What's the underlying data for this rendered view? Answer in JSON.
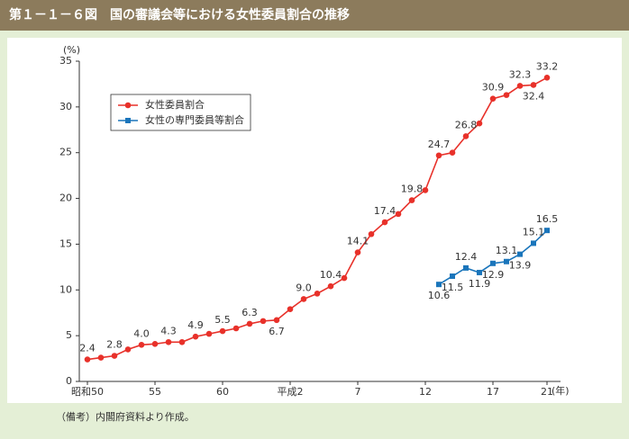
{
  "chart_data": {
    "type": "line",
    "title": "第１－１－６図　国の審議会等における女性委員割合の推移",
    "y_unit": "(%)",
    "x_unit": "(年)",
    "note": "（備考）内閣府資料より作成。",
    "categories": [
      "昭和50",
      null,
      null,
      null,
      null,
      "55",
      null,
      null,
      null,
      null,
      "60",
      null,
      null,
      null,
      null,
      "平成2",
      null,
      null,
      null,
      null,
      "7",
      null,
      null,
      null,
      null,
      "12",
      null,
      null,
      null,
      null,
      "17",
      null,
      null,
      null,
      "21"
    ],
    "series": [
      {
        "name": "女性委員割合",
        "color": "#e8312a",
        "marker": "circle",
        "values": [
          2.4,
          2.6,
          2.8,
          3.5,
          4.0,
          4.1,
          4.3,
          4.3,
          4.9,
          5.2,
          5.5,
          5.8,
          6.3,
          6.6,
          6.7,
          7.9,
          9.0,
          9.6,
          10.4,
          11.3,
          14.1,
          16.1,
          17.4,
          18.3,
          19.8,
          20.9,
          24.7,
          25.0,
          26.8,
          28.2,
          30.9,
          31.3,
          32.3,
          32.4,
          33.2
        ],
        "value_labels": [
          "2.4",
          null,
          "2.8",
          null,
          "4.0",
          null,
          "4.3",
          null,
          "4.9",
          null,
          "5.5",
          null,
          "6.3",
          null,
          "6.7",
          null,
          "9.0",
          null,
          "10.4",
          null,
          "14.1",
          null,
          "17.4",
          null,
          "19.8",
          null,
          "24.7",
          null,
          "26.8",
          null,
          "30.9",
          null,
          "32.3",
          "32.4",
          "33.2"
        ]
      },
      {
        "name": "女性の専門委員等割合",
        "color": "#1a75bb",
        "marker": "square",
        "values": [
          null,
          null,
          null,
          null,
          null,
          null,
          null,
          null,
          null,
          null,
          null,
          null,
          null,
          null,
          null,
          null,
          null,
          null,
          null,
          null,
          null,
          null,
          null,
          null,
          null,
          null,
          10.6,
          11.5,
          12.4,
          11.9,
          12.9,
          13.1,
          13.9,
          15.1,
          16.5
        ],
        "value_labels": [
          null,
          null,
          null,
          null,
          null,
          null,
          null,
          null,
          null,
          null,
          null,
          null,
          null,
          null,
          null,
          null,
          null,
          null,
          null,
          null,
          null,
          null,
          null,
          null,
          null,
          null,
          "10.6",
          "11.5",
          "12.4",
          "11.9",
          "12.9",
          "13.1",
          "13.9",
          "15.1",
          "16.5"
        ]
      }
    ],
    "ylim": [
      0,
      35
    ],
    "yticks": [
      0,
      5,
      10,
      15,
      20,
      25,
      30,
      35
    ],
    "grid": false,
    "legend": "upper left"
  }
}
